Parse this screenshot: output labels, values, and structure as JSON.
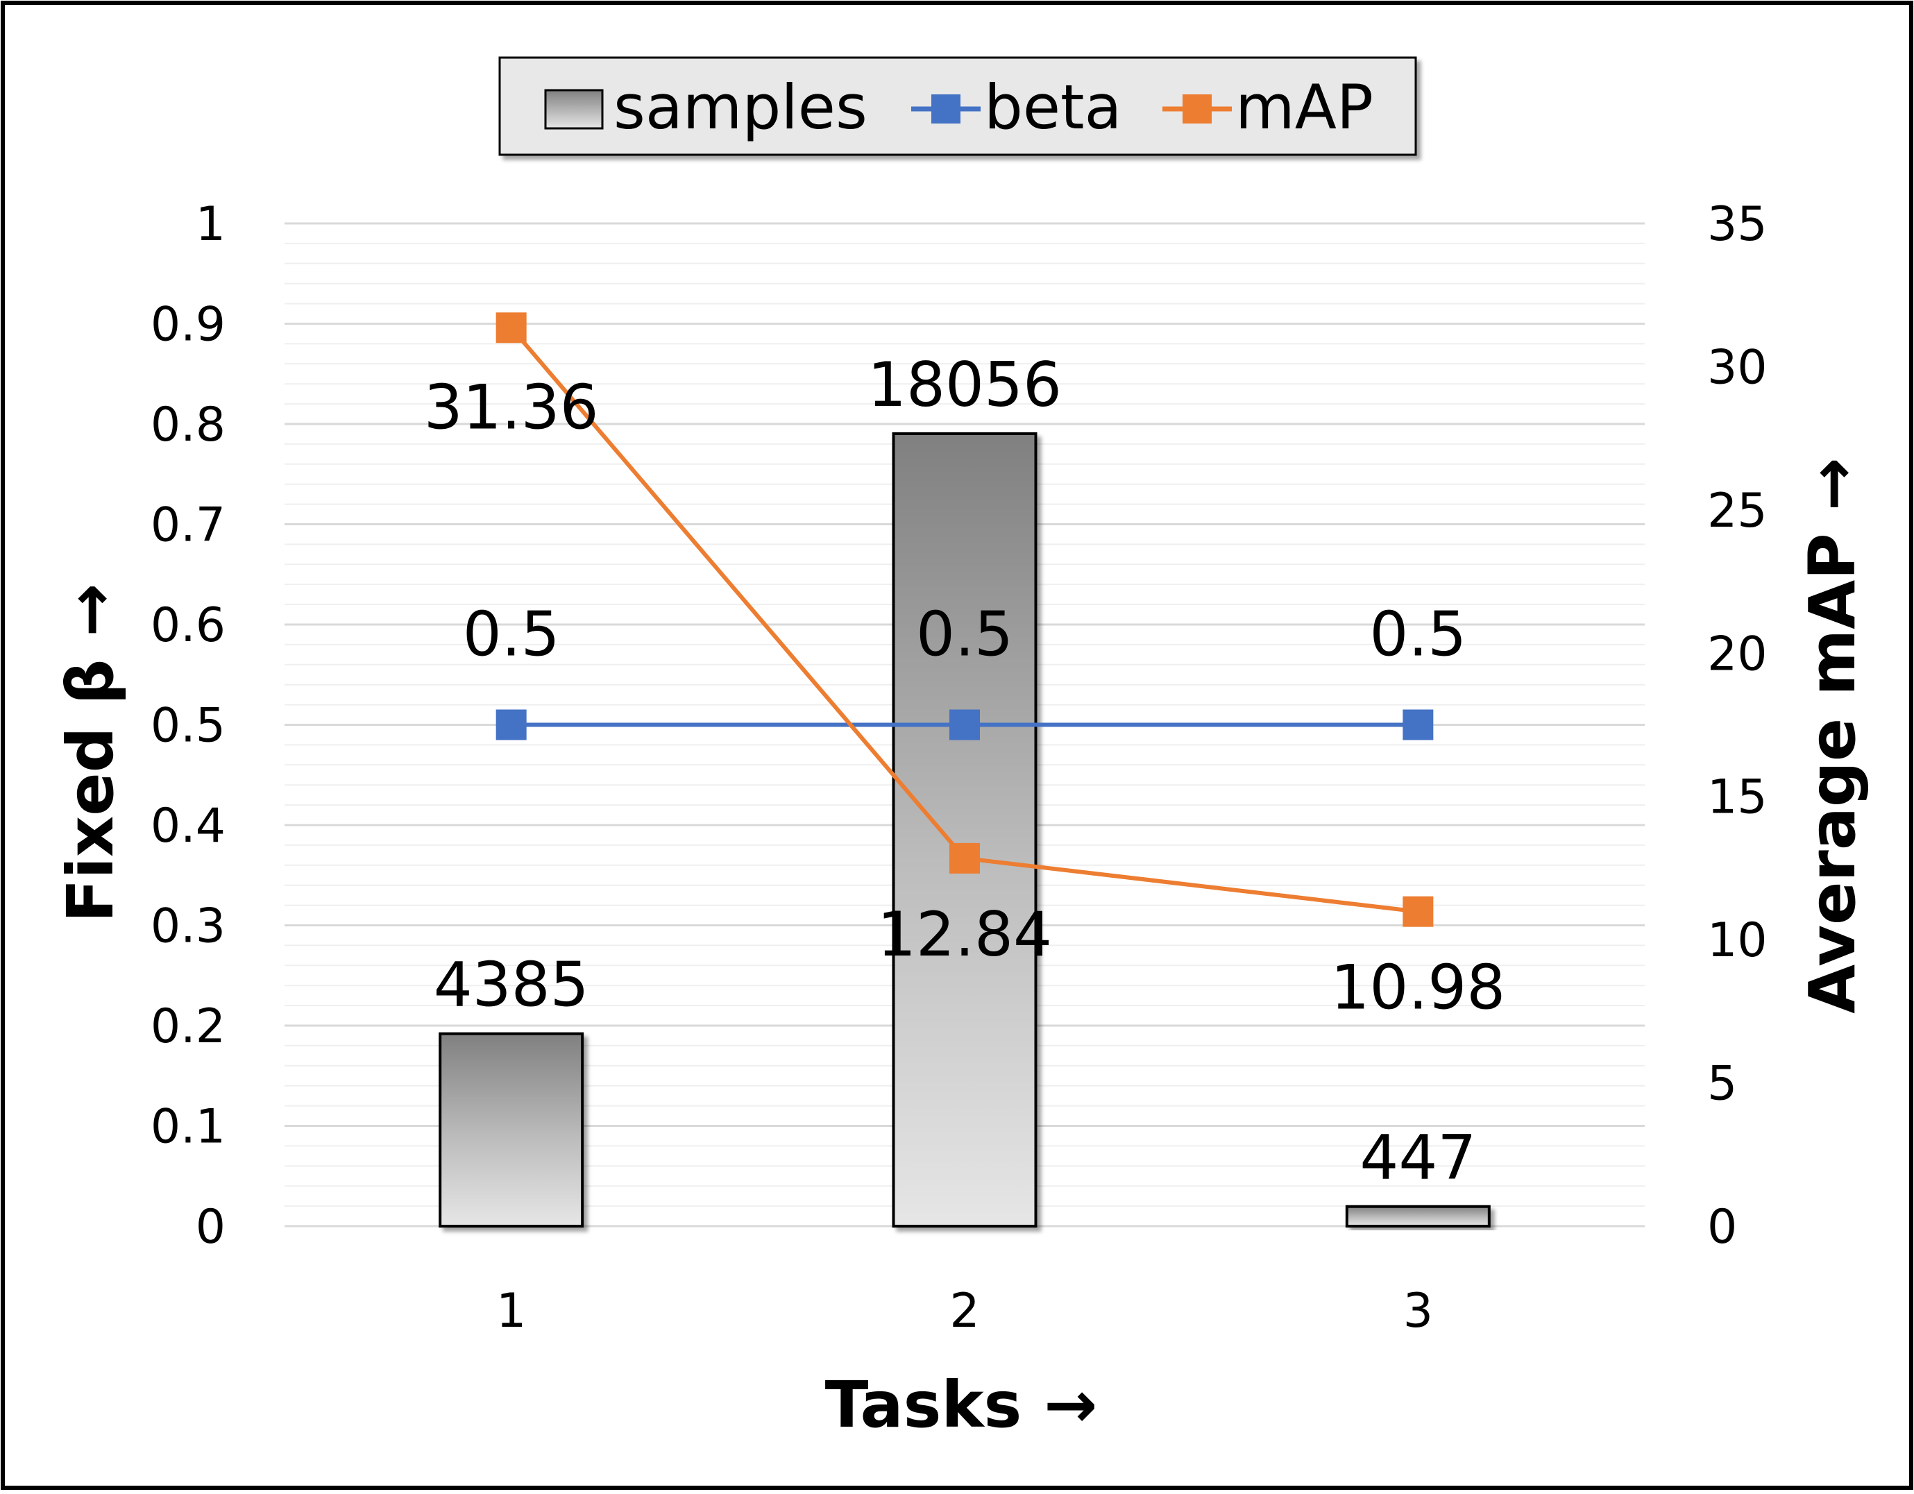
{
  "chart_data": {
    "type": "bar",
    "categories": [
      "1",
      "2",
      "3"
    ],
    "xlabel": "Tasks →",
    "ylabel": "Fixed β →",
    "y2label": "Average mAP →",
    "ylim": [
      0,
      1
    ],
    "y2lim": [
      0,
      35
    ],
    "yticks": [
      "0",
      "0.1",
      "0.2",
      "0.3",
      "0.4",
      "0.5",
      "0.6",
      "0.7",
      "0.8",
      "0.9",
      "1"
    ],
    "y2ticks": [
      "0",
      "5",
      "10",
      "15",
      "20",
      "25",
      "30",
      "35"
    ],
    "legend_position": "top-center",
    "grid": true,
    "series": [
      {
        "name": "samples",
        "kind": "bar",
        "values": [
          4385,
          18056,
          447
        ],
        "labels": [
          "4385",
          "18056",
          "447"
        ],
        "color": "#a6a6a6"
      },
      {
        "name": "beta",
        "kind": "line",
        "axis": "left",
        "values": [
          0.5,
          0.5,
          0.5
        ],
        "labels": [
          "0.5",
          "0.5",
          "0.5"
        ],
        "color": "#4472c4"
      },
      {
        "name": "mAP",
        "kind": "line",
        "axis": "right",
        "values": [
          31.36,
          12.84,
          10.98
        ],
        "labels": [
          "31.36",
          "12.84",
          "10.98"
        ],
        "color": "#ed7d31"
      }
    ]
  }
}
